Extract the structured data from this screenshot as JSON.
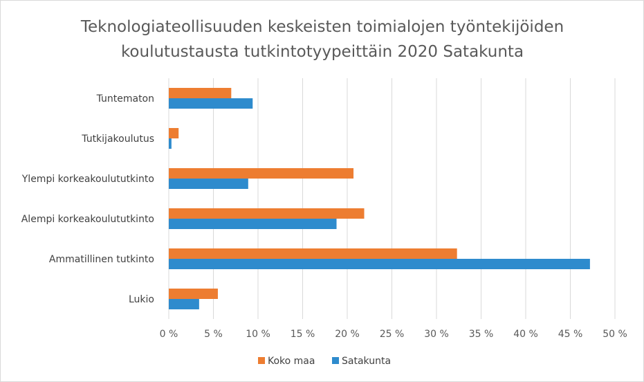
{
  "chart_data": {
    "type": "bar",
    "orientation": "horizontal",
    "title": [
      "Teknologiateollisuuden keskeisten toimialojen työntekijöiden",
      "koulutustausta tutkintotyypeittäin 2020 Satakunta"
    ],
    "categories": [
      "Tuntematon",
      "Tutkijakoulutus",
      "Ylempi korkeakoulututkinto",
      "Alempi korkeakoulututkinto",
      "Ammatillinen tutkinto",
      "Lukio"
    ],
    "series": [
      {
        "name": "Koko maa",
        "color": "#ed7d31",
        "values": [
          7.0,
          1.1,
          20.7,
          21.9,
          32.3,
          5.5
        ]
      },
      {
        "name": "Satakunta",
        "color": "#2e8bcd",
        "values": [
          9.4,
          0.3,
          8.9,
          18.8,
          47.2,
          3.4
        ]
      }
    ],
    "xlim": [
      0,
      50
    ],
    "xticks": [
      0,
      5,
      10,
      15,
      20,
      25,
      30,
      35,
      40,
      45,
      50
    ],
    "tick_labels": [
      "0 %",
      "5 %",
      "10 %",
      "15 %",
      "20 %",
      "25 %",
      "30 %",
      "35 %",
      "40 %",
      "45 %",
      "50 %"
    ],
    "grid": true,
    "legend_position": "bottom"
  }
}
